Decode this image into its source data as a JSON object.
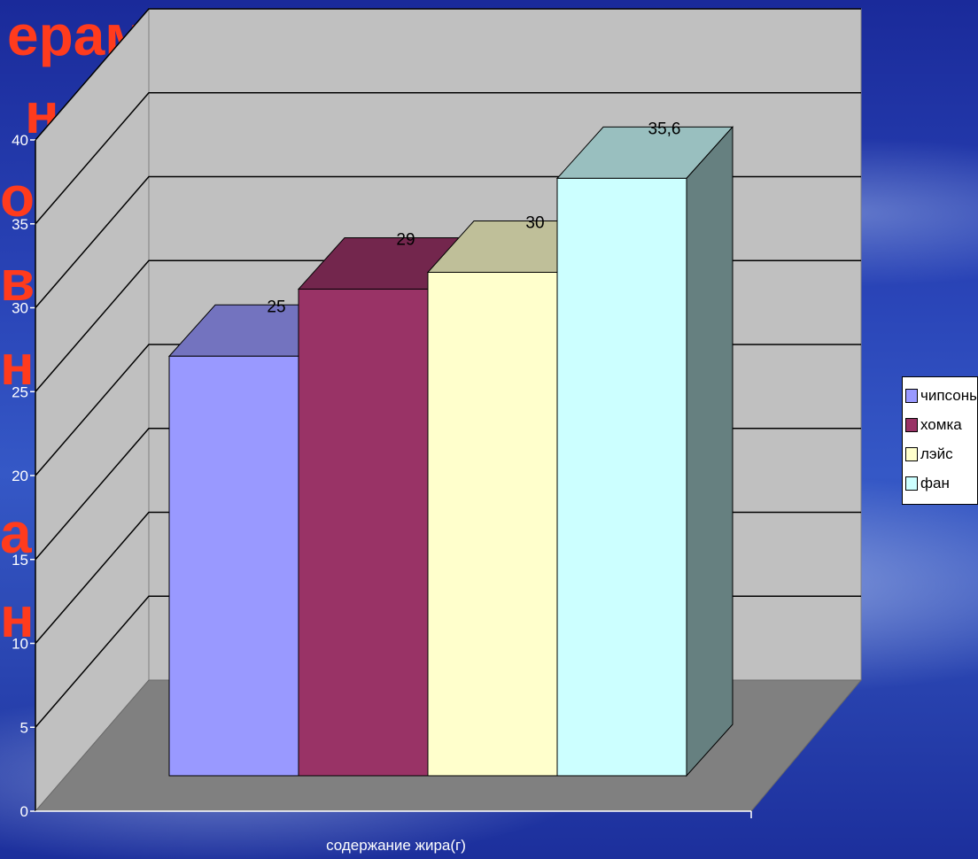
{
  "slide": {
    "background_text_fragments": [
      "ерам",
      "нее",
      "о",
      "вн",
      "н",
      "ан",
      "ни"
    ],
    "text_color": "#ff3b1d"
  },
  "chart_data": {
    "type": "bar",
    "view": "3d",
    "categories": [
      "содержание жира(г)"
    ],
    "series": [
      {
        "name": "чипсоны",
        "values": [
          25
        ],
        "color": "#9999ff"
      },
      {
        "name": "хомка",
        "values": [
          29
        ],
        "color": "#993366"
      },
      {
        "name": "лэйс",
        "values": [
          30
        ],
        "color": "#ffffcc"
      },
      {
        "name": "фан",
        "values": [
          35.6
        ],
        "color": "#ccffff"
      }
    ],
    "data_labels": [
      "25",
      "29",
      "30",
      "35,6"
    ],
    "xlabel": "содержание жира(г)",
    "ylabel": "",
    "title": "",
    "ylim": [
      0,
      40
    ],
    "y_ticks": [
      0,
      5,
      10,
      15,
      20,
      25,
      30,
      35,
      40
    ],
    "grid": true,
    "legend_position": "right"
  }
}
